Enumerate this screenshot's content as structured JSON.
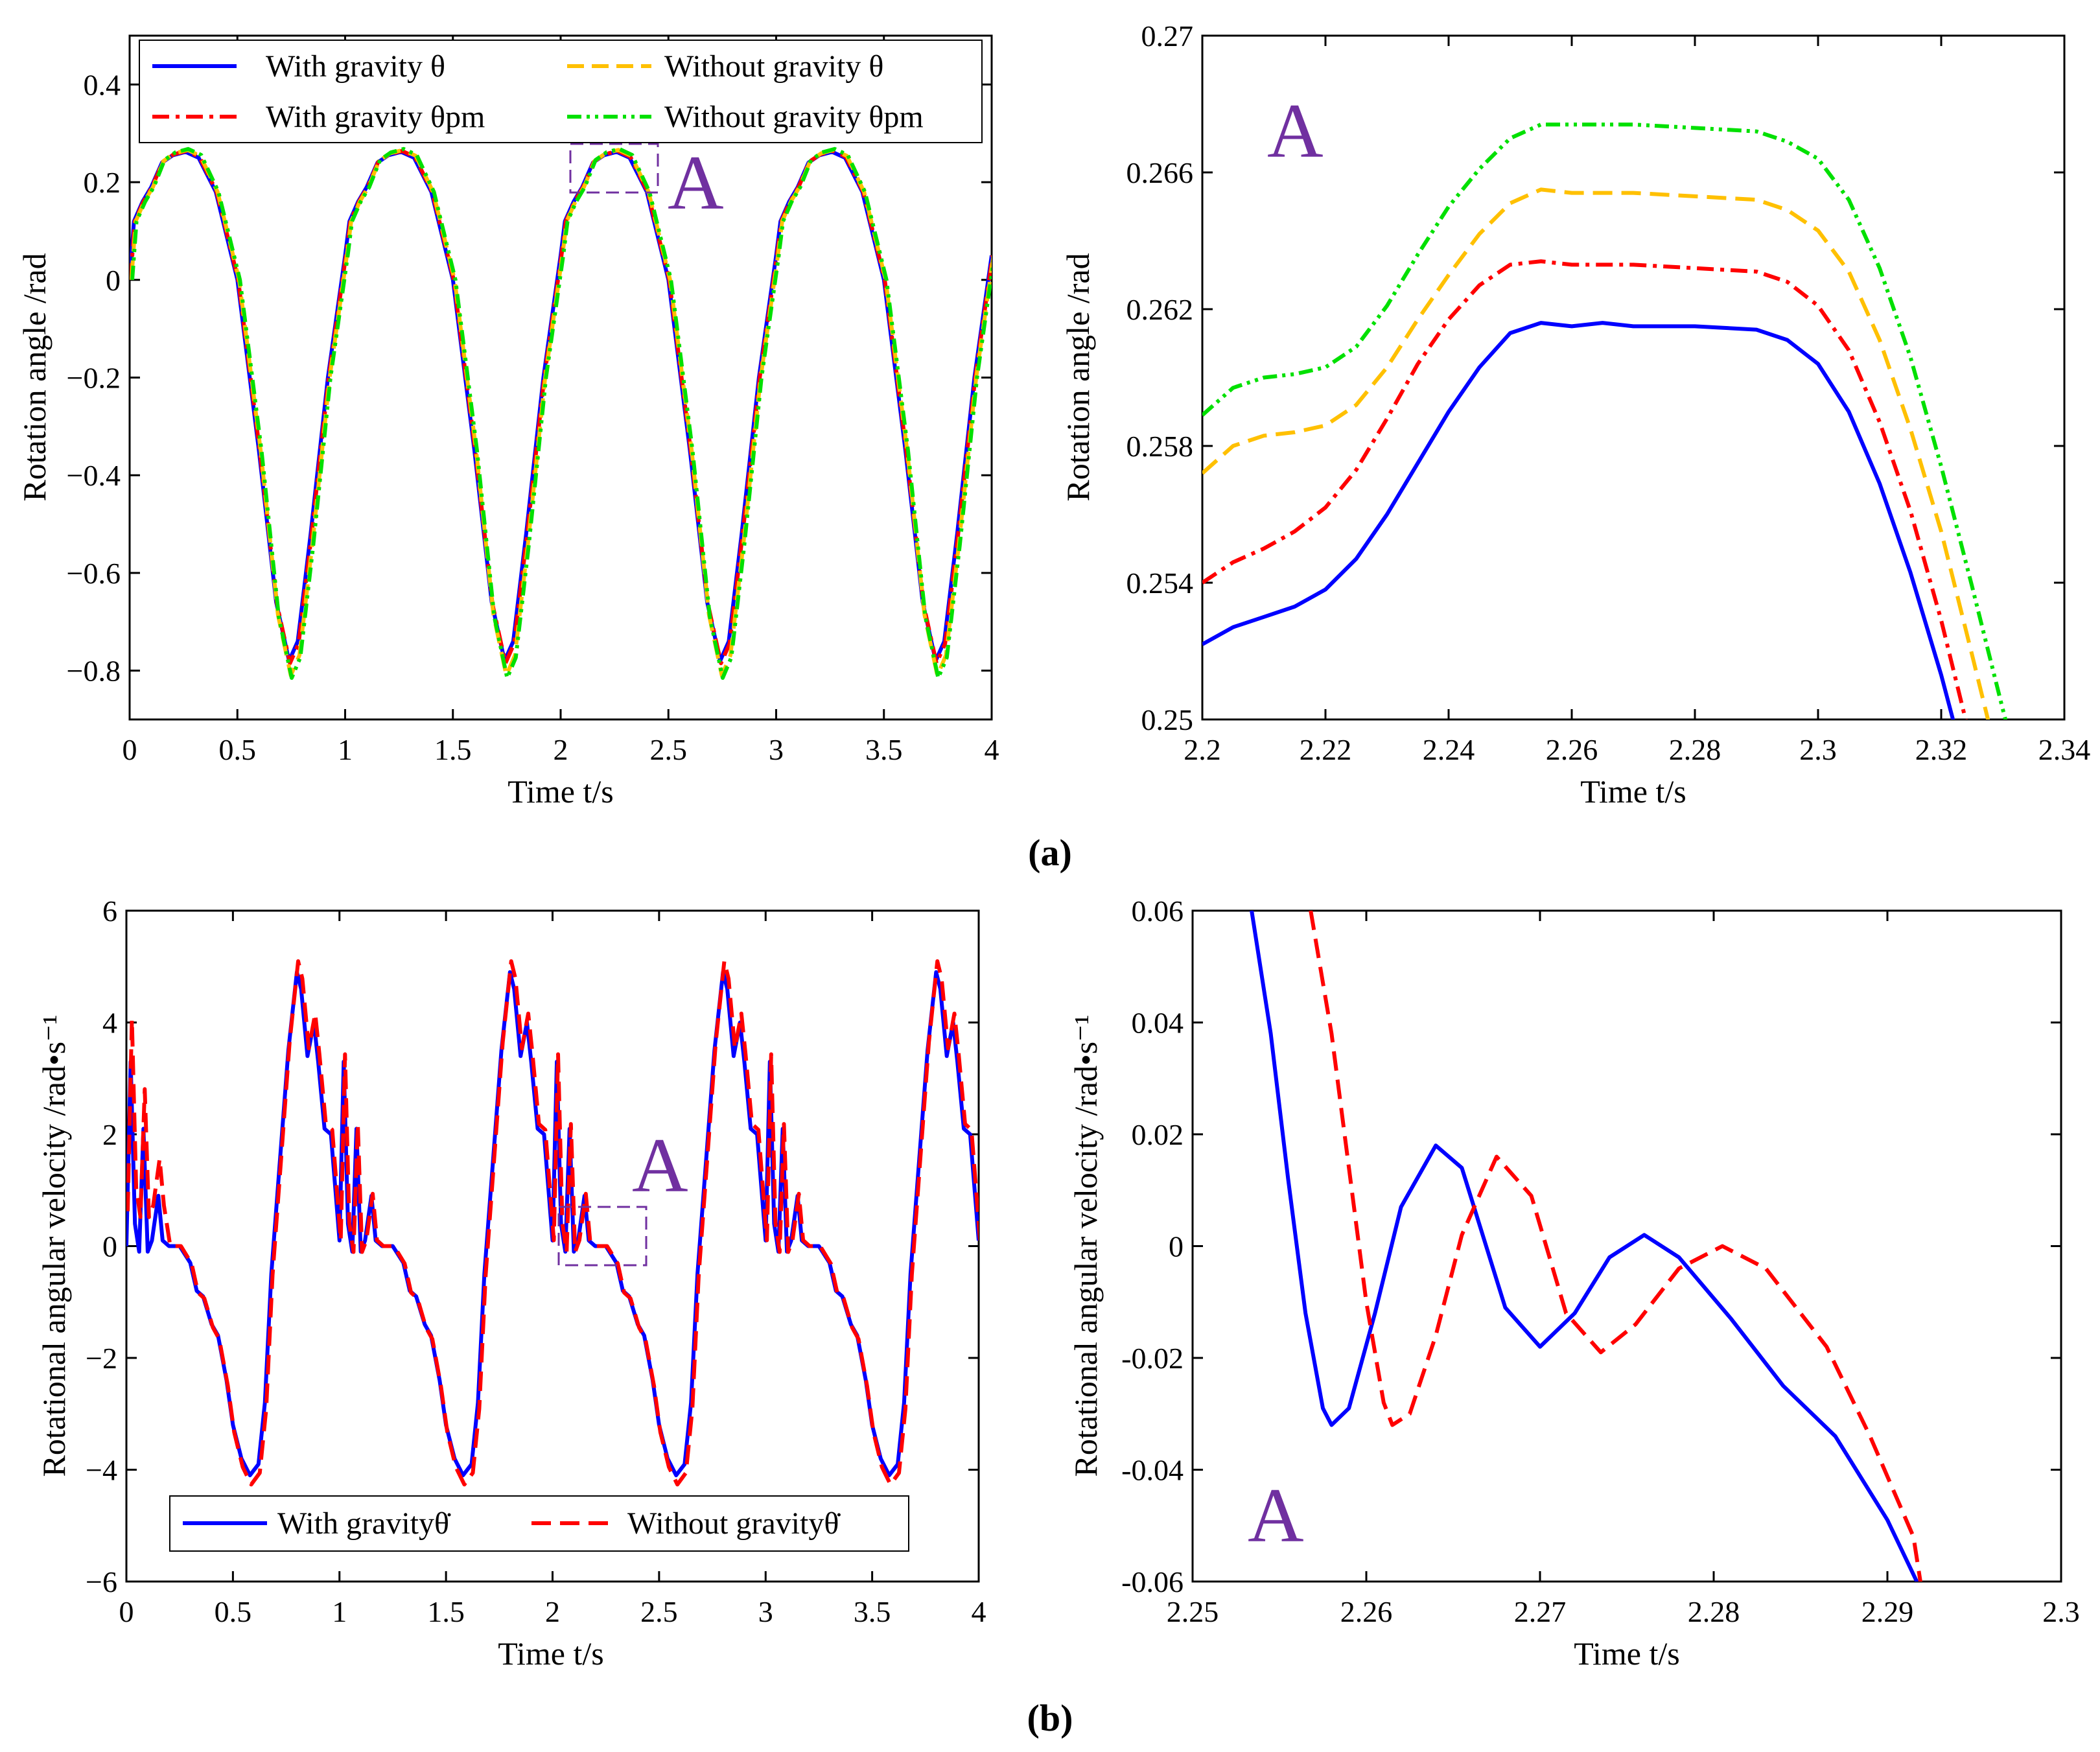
{
  "figure": {
    "panel_a_label": "(a)",
    "panel_b_label": "(b)"
  },
  "colors": {
    "blue": "#0000FF",
    "red": "#FF0000",
    "orange": "#FFC000",
    "green": "#00E000",
    "purple": "#7030A0"
  },
  "chart_data": [
    {
      "id": "a-full",
      "type": "line",
      "xlabel": "Time t/s",
      "ylabel": "Rotation angle /rad",
      "xlim": [
        0,
        4
      ],
      "ylim": [
        -0.9,
        0.5
      ],
      "xticks": [
        0,
        0.5,
        1,
        1.5,
        2,
        2.5,
        3,
        3.5,
        4
      ],
      "xticklabels": [
        "0",
        "0.5",
        "1",
        "1.5",
        "2",
        "2.5",
        "3",
        "3.5",
        "4"
      ],
      "yticks": [
        0.4,
        0.2,
        0,
        -0.2,
        -0.4,
        -0.6,
        -0.8
      ],
      "yticklabels": [
        "0.4",
        "0.2",
        "0",
        "−0.2",
        "−0.4",
        "−0.6",
        "−0.8"
      ],
      "zoom_box": {
        "label": "A",
        "x": [
          2.05,
          2.45
        ],
        "y": [
          0.18,
          0.28
        ]
      },
      "legend": {
        "placement": "top",
        "columns": 2
      },
      "series": [
        {
          "name": "With gravity θ",
          "color": "#0000FF",
          "dash": "solid",
          "period": 1.0,
          "amplitude_max": 0.262,
          "amplitude_min": -0.78,
          "x": [
            0,
            0.02,
            0.06,
            0.1,
            0.15,
            0.2,
            0.26,
            0.32,
            0.4,
            0.5,
            0.6,
            0.68,
            0.74,
            0.78,
            0.84,
            0.92,
            1.0
          ],
          "y": [
            0,
            0.12,
            0.16,
            0.19,
            0.24,
            0.255,
            0.262,
            0.25,
            0.18,
            0.0,
            -0.35,
            -0.66,
            -0.78,
            -0.74,
            -0.52,
            -0.2,
            0.05
          ]
        },
        {
          "name": "With gravity θpm",
          "color": "#FF0000",
          "dash": "dashdot",
          "period": 1.0,
          "amplitude_max": 0.264,
          "amplitude_min": -0.785
        },
        {
          "name": "Without gravity θ",
          "color": "#FFC000",
          "dash": "dashed",
          "period": 1.0,
          "amplitude_max": 0.266,
          "amplitude_min": -0.81
        },
        {
          "name": "Without gravity θpm",
          "color": "#00E000",
          "dash": "dashdotdot",
          "period": 1.0,
          "amplitude_max": 0.268,
          "amplitude_min": -0.815
        }
      ]
    },
    {
      "id": "a-zoom",
      "type": "line",
      "annotation": "A",
      "xlabel": "Time t/s",
      "ylabel": "Rotation angle /rad",
      "xlim": [
        2.2,
        2.34
      ],
      "ylim": [
        0.25,
        0.27
      ],
      "xticks": [
        2.2,
        2.22,
        2.24,
        2.26,
        2.28,
        2.3,
        2.32,
        2.34
      ],
      "xticklabels": [
        "2.2",
        "2.22",
        "2.24",
        "2.26",
        "2.28",
        "2.3",
        "2.32",
        "2.34"
      ],
      "yticks": [
        0.27,
        0.266,
        0.262,
        0.258,
        0.254,
        0.25
      ],
      "yticklabels": [
        "0.27",
        "0.266",
        "0.262",
        "0.258",
        "0.254",
        "0.25"
      ],
      "series": [
        {
          "name": "With gravity θ",
          "color": "#0000FF",
          "dash": "solid",
          "x": [
            2.2,
            2.205,
            2.21,
            2.215,
            2.22,
            2.225,
            2.23,
            2.235,
            2.24,
            2.245,
            2.25,
            2.255,
            2.26,
            2.265,
            2.27,
            2.28,
            2.29,
            2.295,
            2.3,
            2.305,
            2.31,
            2.315,
            2.32,
            2.3225
          ],
          "y": [
            0.2522,
            0.2527,
            0.253,
            0.2533,
            0.2538,
            0.2547,
            0.256,
            0.2575,
            0.259,
            0.2603,
            0.2613,
            0.2616,
            0.2615,
            0.2616,
            0.2615,
            0.2615,
            0.2614,
            0.2611,
            0.2604,
            0.259,
            0.2569,
            0.2543,
            0.2513,
            0.2496
          ]
        },
        {
          "name": "With gravity θpm",
          "color": "#FF0000",
          "dash": "dashdot",
          "x": [
            2.2,
            2.205,
            2.21,
            2.215,
            2.22,
            2.225,
            2.23,
            2.235,
            2.24,
            2.245,
            2.25,
            2.255,
            2.26,
            2.265,
            2.27,
            2.28,
            2.29,
            2.295,
            2.3,
            2.305,
            2.31,
            2.315,
            2.32,
            2.3245
          ],
          "y": [
            0.254,
            0.2546,
            0.255,
            0.2555,
            0.2562,
            0.2573,
            0.2588,
            0.2604,
            0.2617,
            0.2627,
            0.2633,
            0.2634,
            0.2633,
            0.2633,
            0.2633,
            0.2632,
            0.2631,
            0.2628,
            0.2621,
            0.2608,
            0.2587,
            0.2561,
            0.2529,
            0.2496
          ]
        },
        {
          "name": "Without gravity θ",
          "color": "#FFC000",
          "dash": "dashed",
          "x": [
            2.2,
            2.205,
            2.21,
            2.215,
            2.22,
            2.225,
            2.23,
            2.235,
            2.24,
            2.245,
            2.25,
            2.255,
            2.26,
            2.265,
            2.27,
            2.28,
            2.29,
            2.295,
            2.3,
            2.305,
            2.31,
            2.315,
            2.32,
            2.325,
            2.328
          ],
          "y": [
            0.2572,
            0.258,
            0.2583,
            0.2584,
            0.2586,
            0.2592,
            0.2603,
            0.2617,
            0.263,
            0.2642,
            0.2651,
            0.2655,
            0.2654,
            0.2654,
            0.2654,
            0.2653,
            0.2652,
            0.2649,
            0.2643,
            0.2631,
            0.2611,
            0.2585,
            0.2555,
            0.2519,
            0.2497
          ]
        },
        {
          "name": "Without gravity θpm",
          "color": "#00E000",
          "dash": "dashdotdot",
          "x": [
            2.2,
            2.205,
            2.21,
            2.215,
            2.22,
            2.225,
            2.23,
            2.235,
            2.24,
            2.245,
            2.25,
            2.255,
            2.26,
            2.265,
            2.27,
            2.28,
            2.29,
            2.295,
            2.3,
            2.305,
            2.31,
            2.315,
            2.32,
            2.325,
            2.33,
            2.331
          ],
          "y": [
            0.2589,
            0.2597,
            0.26,
            0.2601,
            0.2603,
            0.2609,
            0.2621,
            0.2636,
            0.265,
            0.2661,
            0.267,
            0.2674,
            0.2674,
            0.2674,
            0.2674,
            0.2673,
            0.2672,
            0.2669,
            0.2664,
            0.2652,
            0.2632,
            0.2606,
            0.2574,
            0.2539,
            0.2503,
            0.2496
          ]
        }
      ]
    },
    {
      "id": "b-full",
      "type": "line",
      "xlabel": "Time t/s",
      "ylabel": "Rotational angular velocity /rad•s⁻¹",
      "xlim": [
        0,
        4
      ],
      "ylim": [
        -6,
        6
      ],
      "xticks": [
        0,
        0.5,
        1,
        1.5,
        2,
        2.5,
        3,
        3.5,
        4
      ],
      "xticklabels": [
        "0",
        "0.5",
        "1",
        "1.5",
        "2",
        "2.5",
        "3",
        "3.5",
        "4"
      ],
      "yticks": [
        6,
        4,
        2,
        0,
        -2,
        -4,
        -6
      ],
      "yticklabels": [
        "6",
        "4",
        "2",
        "0",
        "−2",
        "−4",
        "−6"
      ],
      "zoom_box": {
        "label": "A",
        "x": [
          2.0,
          2.45
        ],
        "y": [
          -0.4,
          0.6
        ]
      },
      "legend": {
        "placement": "bottom",
        "columns": 2
      },
      "series": [
        {
          "name": "With gravityθ̇",
          "color": "#0000FF",
          "dash": "solid",
          "period": 1.0,
          "x": [
            0,
            0.02,
            0.04,
            0.06,
            0.08,
            0.1,
            0.12,
            0.15,
            0.17,
            0.2,
            0.25,
            0.3,
            0.33,
            0.36,
            0.4,
            0.43,
            0.47,
            0.5,
            0.54,
            0.58,
            0.62,
            0.65,
            0.68,
            0.72,
            0.76,
            0.8,
            0.82,
            0.85,
            0.88,
            0.9,
            0.93,
            0.96,
            1.0
          ],
          "y": [
            0,
            3.3,
            0.4,
            -0.1,
            2.1,
            -0.1,
            0.1,
            0.9,
            0.1,
            0.0,
            0.0,
            -0.3,
            -0.8,
            -0.9,
            -1.4,
            -1.6,
            -2.4,
            -3.2,
            -3.8,
            -4.1,
            -3.9,
            -2.8,
            -0.5,
            1.5,
            3.5,
            4.9,
            4.6,
            3.4,
            4.0,
            3.3,
            2.1,
            2.0,
            0.1
          ]
        },
        {
          "name": "Without gravityθ̇",
          "color": "#FF0000",
          "dash": "dashed",
          "period": 1.0
        }
      ]
    },
    {
      "id": "b-zoom",
      "type": "line",
      "annotation": "A",
      "xlabel": "Time t/s",
      "ylabel": "Rotational angular velocity /rad•s⁻¹",
      "xlim": [
        2.25,
        2.3
      ],
      "ylim": [
        -0.06,
        0.06
      ],
      "xticks": [
        2.25,
        2.26,
        2.27,
        2.28,
        2.29,
        2.3
      ],
      "xticklabels": [
        "2.25",
        "2.26",
        "2.27",
        "2.28",
        "2.29",
        "2.3"
      ],
      "yticks": [
        0.06,
        0.04,
        0.02,
        0,
        -0.02,
        -0.04,
        -0.06
      ],
      "yticklabels": [
        "0.06",
        "0.04",
        "0.02",
        "0",
        "-0.02",
        "-0.04",
        "-0.06"
      ],
      "series": [
        {
          "name": "With gravityθ̇",
          "color": "#0000FF",
          "dash": "solid",
          "x": [
            2.2534,
            2.2545,
            2.2555,
            2.2565,
            2.2575,
            2.258,
            2.259,
            2.2605,
            2.262,
            2.264,
            2.2655,
            2.268,
            2.27,
            2.272,
            2.274,
            2.276,
            2.278,
            2.281,
            2.284,
            2.287,
            2.29,
            2.292
          ],
          "y": [
            0.06,
            0.038,
            0.012,
            -0.012,
            -0.029,
            -0.032,
            -0.029,
            -0.012,
            0.007,
            0.018,
            0.014,
            -0.011,
            -0.018,
            -0.012,
            -0.002,
            0.002,
            -0.002,
            -0.013,
            -0.025,
            -0.034,
            -0.049,
            -0.062
          ]
        },
        {
          "name": "Without gravityθ̇",
          "color": "#FF0000",
          "dash": "dashed",
          "x": [
            2.2568,
            2.258,
            2.259,
            2.26,
            2.261,
            2.2615,
            2.2625,
            2.264,
            2.2655,
            2.2675,
            2.2695,
            2.2715,
            2.2735,
            2.2755,
            2.278,
            2.2805,
            2.283,
            2.2865,
            2.289,
            2.2915,
            2.292
          ],
          "y": [
            0.06,
            0.038,
            0.014,
            -0.01,
            -0.028,
            -0.032,
            -0.03,
            -0.016,
            0.002,
            0.016,
            0.009,
            -0.012,
            -0.019,
            -0.014,
            -0.004,
            0.0,
            -0.004,
            -0.018,
            -0.034,
            -0.052,
            -0.062
          ]
        }
      ]
    }
  ]
}
